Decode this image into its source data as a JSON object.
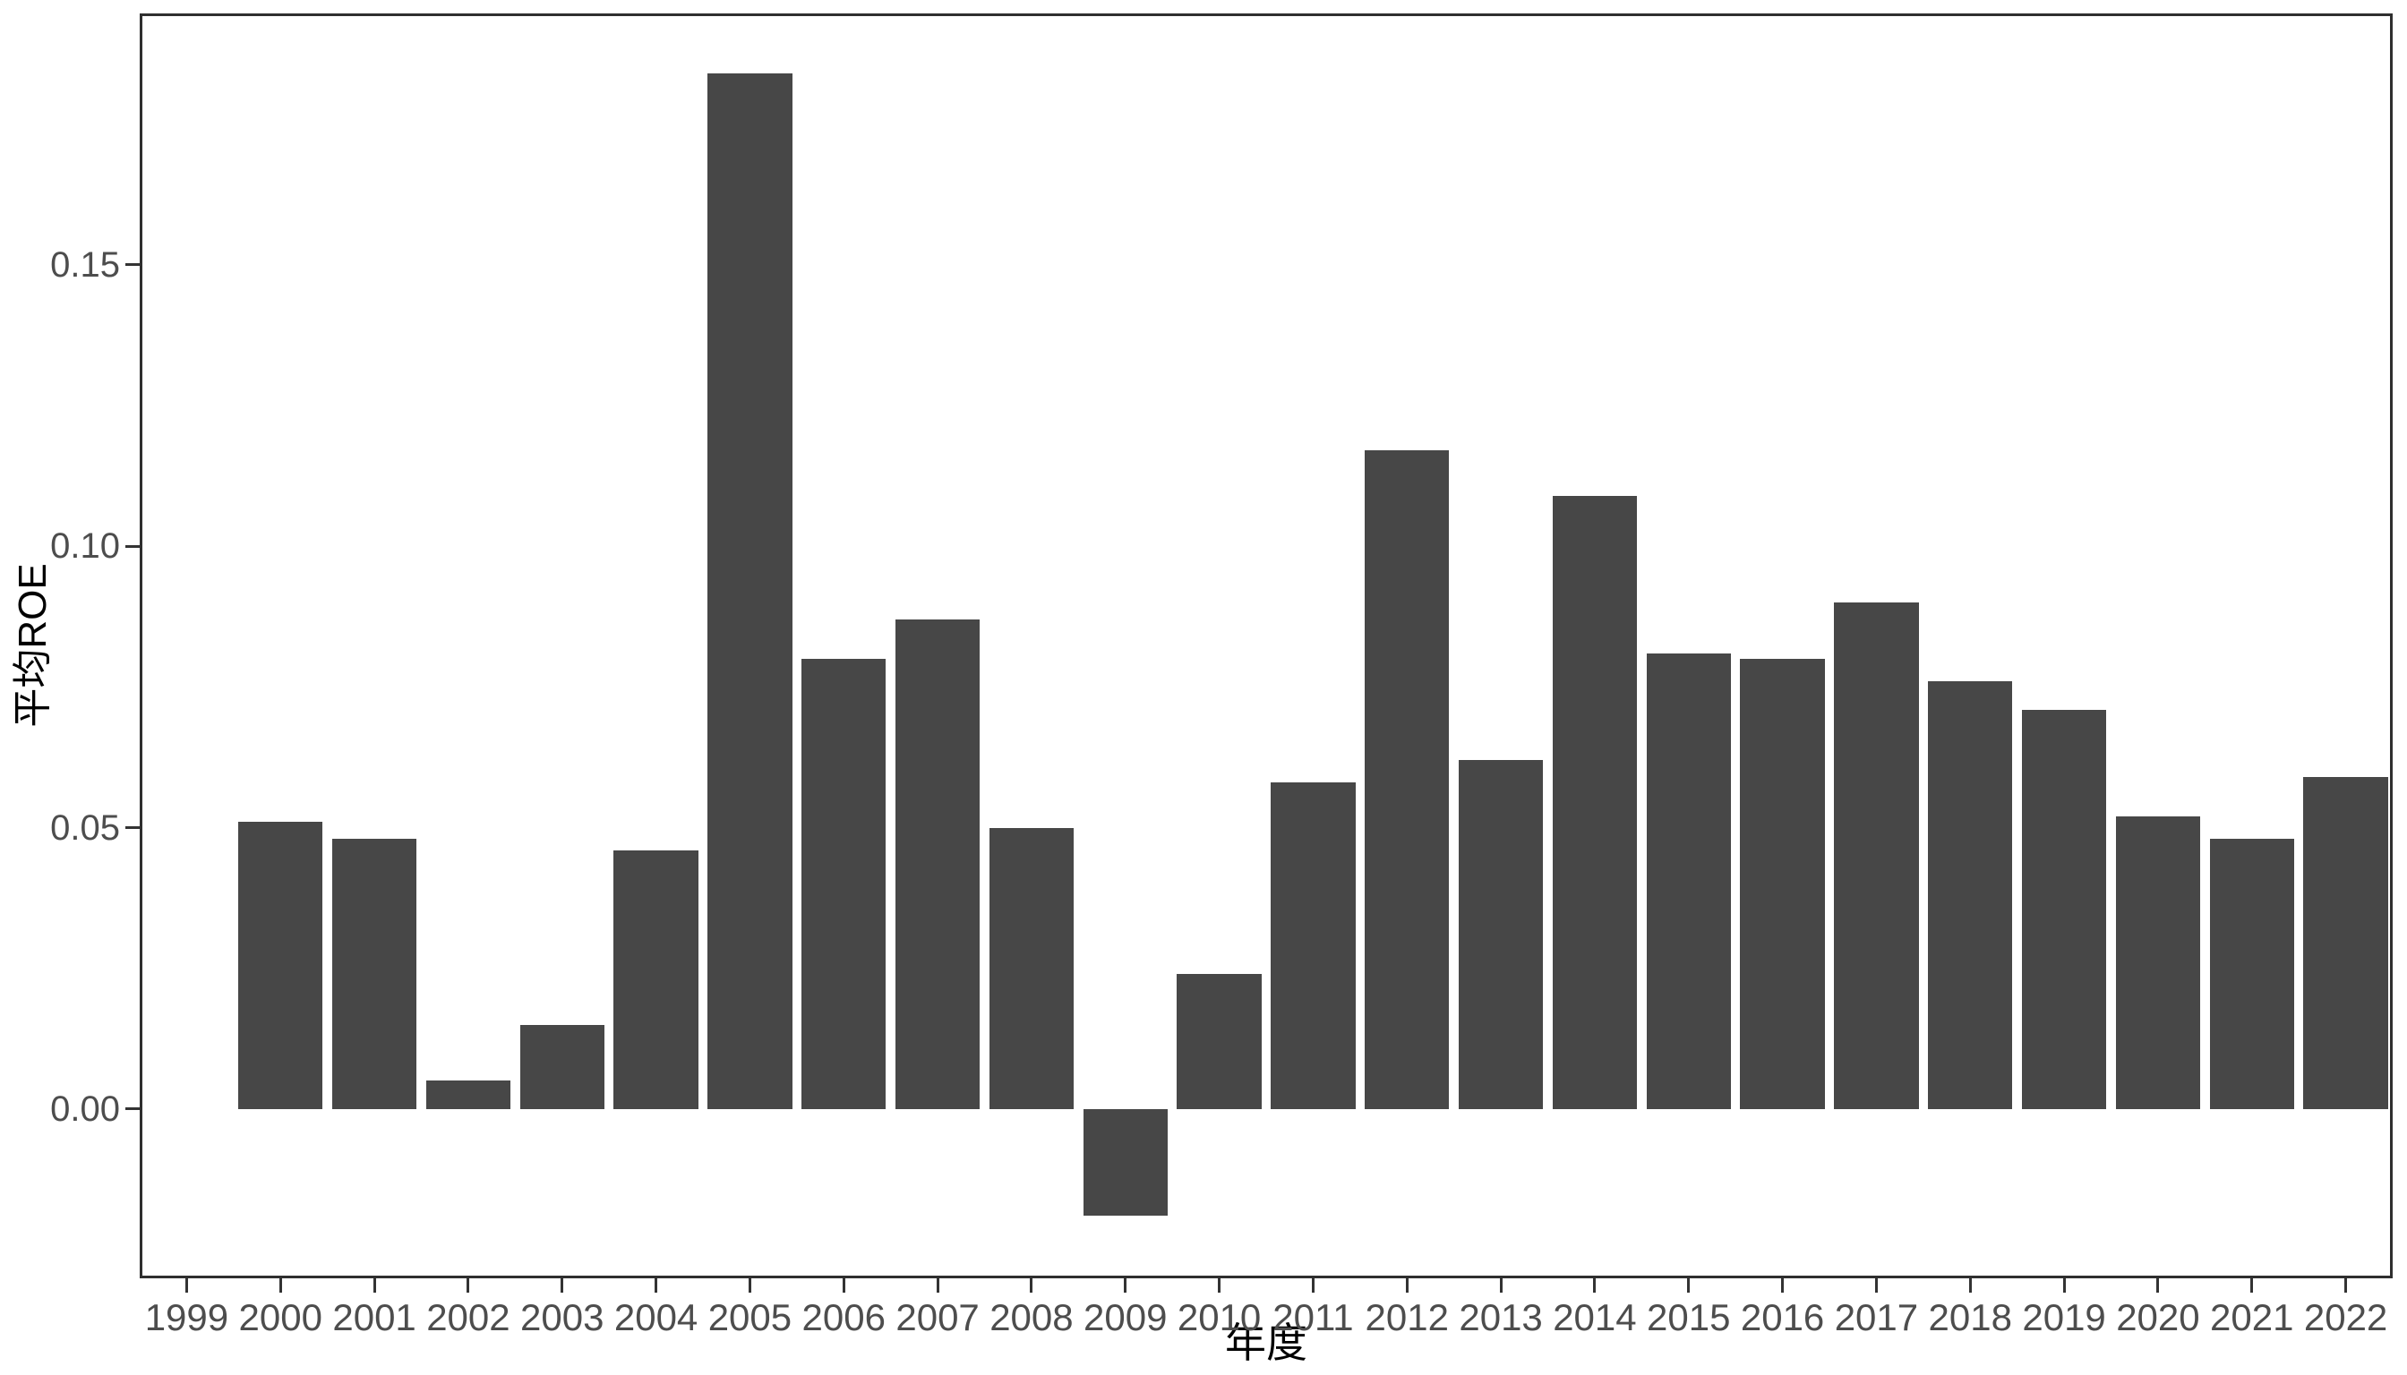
{
  "chart_data": {
    "type": "bar",
    "title": "",
    "xlabel": "年度",
    "ylabel": "平均ROE",
    "categories": [
      "1999",
      "2000",
      "2001",
      "2002",
      "2003",
      "2004",
      "2005",
      "2006",
      "2007",
      "2008",
      "2009",
      "2010",
      "2011",
      "2012",
      "2013",
      "2014",
      "2015",
      "2016",
      "2017",
      "2018",
      "2019",
      "2020",
      "2021",
      "2022"
    ],
    "values": [
      null,
      0.051,
      0.048,
      0.005,
      0.015,
      0.046,
      0.184,
      0.08,
      0.087,
      0.05,
      -0.019,
      0.024,
      0.058,
      0.117,
      0.062,
      0.109,
      0.081,
      0.08,
      0.09,
      0.076,
      0.071,
      0.052,
      0.048,
      0.059
    ],
    "ylim": [
      -0.0301,
      0.1947
    ],
    "yticks": [
      0.0,
      0.05,
      0.1,
      0.15
    ],
    "ytick_labels": [
      "0.00",
      "0.05",
      "0.10",
      "0.15"
    ],
    "grid": "off",
    "legend": "none",
    "bar_gap_ratio": 0.1
  },
  "colors": {
    "bar_fill": "#474747",
    "panel_border": "#2f2f2f",
    "tick_mark": "#333333",
    "tick_label": "#4d4d4d",
    "axis_title": "#000000",
    "background": "#ffffff"
  }
}
